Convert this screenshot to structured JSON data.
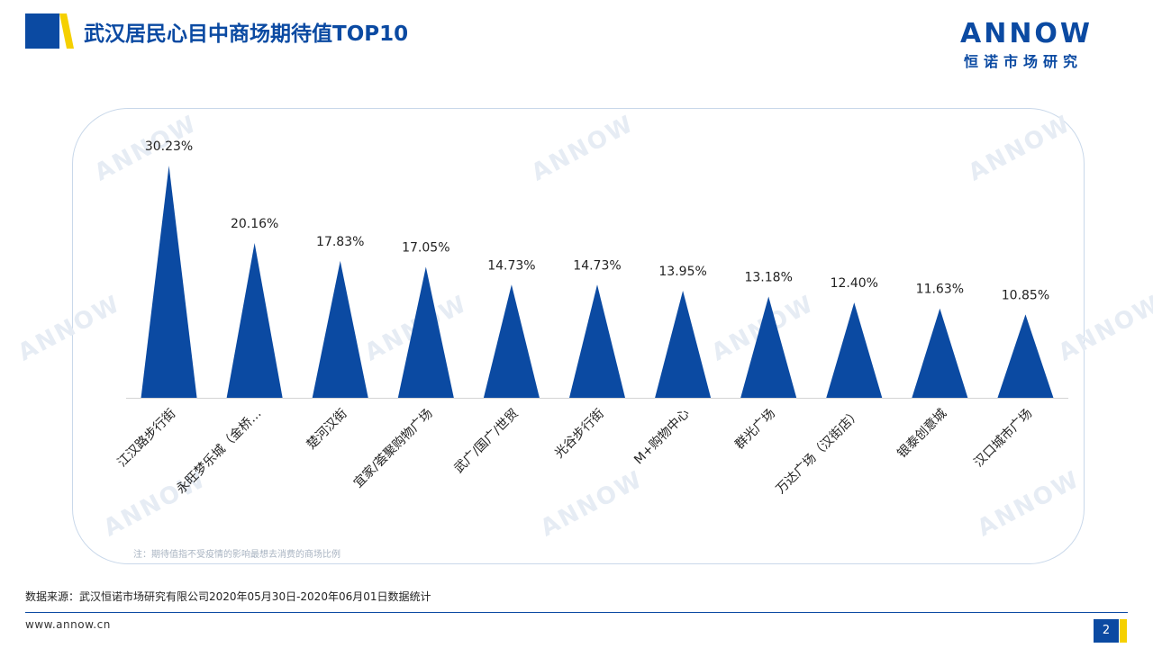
{
  "header": {
    "title": "武汉居民心目中商场期待值TOP10",
    "brand_color": "#0b4aa2",
    "accent_color": "#f5d000"
  },
  "logo": {
    "word": "ANNOW",
    "chinese": "恒诺市场研究"
  },
  "chart_data": {
    "type": "bar",
    "mark_shape": "triangle",
    "bar_color": "#0b4aa2",
    "categories": [
      "江汉路步行街",
      "永旺梦乐城（金桥…",
      "楚河汉街",
      "宜家/荟聚购物广场",
      "武广/国广/世贸",
      "光谷步行街",
      "M+购物中心",
      "群光广场",
      "万达广场（汉街店）",
      "银泰创意城",
      "汉口城市广场"
    ],
    "values": [
      30.23,
      20.16,
      17.83,
      17.05,
      14.73,
      14.73,
      13.95,
      13.18,
      12.4,
      11.63,
      10.85
    ],
    "value_labels": [
      "30.23%",
      "20.16%",
      "17.83%",
      "17.05%",
      "14.73%",
      "14.73%",
      "13.95%",
      "13.18%",
      "12.40%",
      "11.63%",
      "10.85%"
    ],
    "ylim": [
      0,
      30.23
    ],
    "grid": false,
    "legend": "none",
    "xlabel": "",
    "ylabel": ""
  },
  "note": "注：期待值指不受疫情的影响最想去消费的商场比例",
  "source": "数据来源：武汉恒诺市场研究有限公司2020年05月30日-2020年06月01日数据统计",
  "footer": {
    "url": "www.annow.cn",
    "page": "2"
  }
}
